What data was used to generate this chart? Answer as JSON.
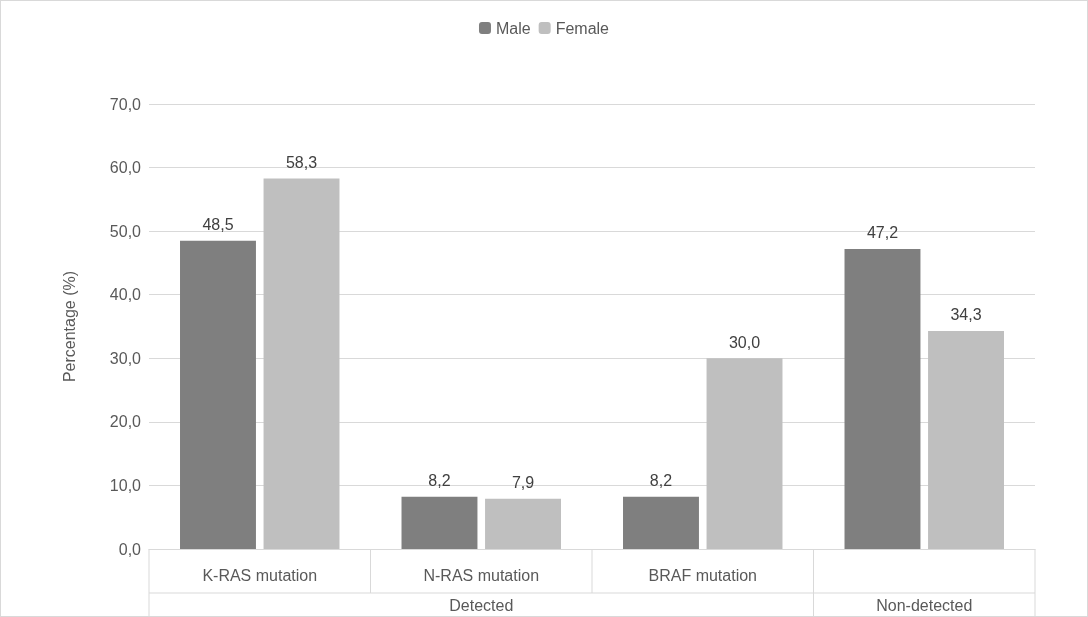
{
  "chart_data": {
    "type": "bar",
    "ylabel": "Percentage (%)",
    "categories": [
      "K-RAS mutation",
      "N-RAS mutation",
      "BRAF mutation",
      null
    ],
    "series": [
      {
        "name": "Male",
        "color": "#7f7f7f",
        "values": [
          48.5,
          8.2,
          8.2,
          47.2
        ],
        "value_labels": [
          "48,5",
          "8,2",
          "8,2",
          "47,2"
        ]
      },
      {
        "name": "Female",
        "color": "#bfbfbf",
        "values": [
          58.3,
          7.9,
          30.0,
          34.3
        ],
        "value_labels": [
          "58,3",
          "7,9",
          "30,0",
          "34,3"
        ]
      }
    ],
    "annotations": [
      "Detected",
      "Non-detected"
    ],
    "ylim": [
      0,
      70
    ],
    "yticks": [
      {
        "value": 0,
        "label": "0,0"
      },
      {
        "value": 10,
        "label": "10,0"
      },
      {
        "value": 20,
        "label": "20,0"
      },
      {
        "value": 30,
        "label": "30,0"
      },
      {
        "value": 40,
        "label": "40,0"
      },
      {
        "value": 50,
        "label": "50,0"
      },
      {
        "value": 60,
        "label": "60,0"
      },
      {
        "value": 70,
        "label": "70,0"
      }
    ],
    "grid": "y",
    "legend": "top"
  }
}
